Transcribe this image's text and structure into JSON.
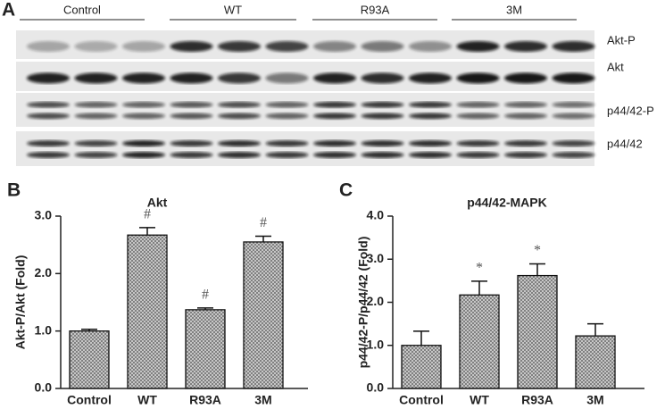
{
  "panels": {
    "a": {
      "letter": "A",
      "groups": [
        "Control",
        "WT",
        "R93A",
        "3M"
      ],
      "rows": [
        "Akt-P",
        "Akt",
        "p44/42-P",
        "p44/42"
      ]
    }
  },
  "chart_data": [
    {
      "type": "bar",
      "letter": "B",
      "title": "Akt",
      "y_label": "Akt-P/Akt (Fold)",
      "categories": [
        "Control",
        "WT",
        "R93A",
        "3M"
      ],
      "values": [
        1.0,
        2.67,
        1.37,
        2.55
      ],
      "errors": [
        0.03,
        0.13,
        0.03,
        0.1
      ],
      "markers": [
        null,
        "#",
        "#",
        "#"
      ],
      "color": "#7a7a7a",
      "ylim": [
        0,
        3
      ],
      "yticks": [
        {
          "value": 0,
          "label": "0.0"
        },
        {
          "value": 1,
          "label": "1.0"
        },
        {
          "value": 2,
          "label": "2.0"
        },
        {
          "value": 3,
          "label": "3.0"
        }
      ]
    },
    {
      "type": "bar",
      "letter": "C",
      "title": "p44/42-MAPK",
      "y_label": "p44/42-P/p44/42 (Fold)",
      "categories": [
        "Control",
        "WT",
        "R93A",
        "3M"
      ],
      "values": [
        1.0,
        2.17,
        2.62,
        1.22
      ],
      "errors": [
        0.33,
        0.32,
        0.27,
        0.28
      ],
      "markers": [
        null,
        "*",
        "*",
        null
      ],
      "color": "#7a7a7a",
      "ylim": [
        0,
        4
      ],
      "yticks": [
        {
          "value": 0,
          "label": "0.0"
        },
        {
          "value": 1,
          "label": "1.0"
        },
        {
          "value": 2,
          "label": "2.0"
        },
        {
          "value": 3,
          "label": "3.0"
        },
        {
          "value": 4,
          "label": "4.0"
        }
      ]
    }
  ]
}
